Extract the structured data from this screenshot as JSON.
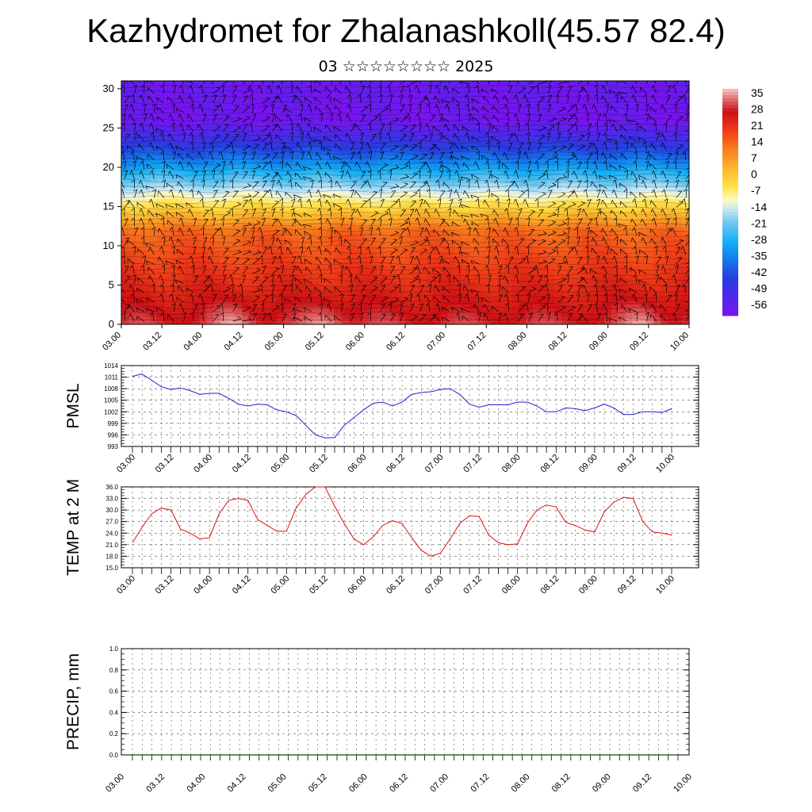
{
  "title": "Kazhydromet for Zhalanashkoll(45.57 82.4)",
  "subtitle": "03 ☆☆☆☆☆☆☆☆ 2025",
  "colors": {
    "pmsl_line": "#1f1fd6",
    "temp_line": "#e01010",
    "precip_line": "#2a6e2a"
  },
  "chart_data": [
    {
      "type": "heatmap",
      "name": "cross-section",
      "x_ticks": [
        "03.00",
        "03.12",
        "04.00",
        "04.12",
        "05.00",
        "05.12",
        "06.00",
        "06.12",
        "07.00",
        "07.12",
        "08.00",
        "08.12",
        "09.00",
        "09.12",
        "10.00"
      ],
      "y_ticks": [
        "0",
        "5",
        "10",
        "15",
        "20",
        "25",
        "30"
      ],
      "ylim": [
        0,
        31
      ],
      "colorbar_labels": [
        "35",
        "28",
        "21",
        "14",
        "7",
        "0",
        "-7",
        "-14",
        "-21",
        "-28",
        "-35",
        "-42",
        "-49",
        "-56"
      ],
      "colorbar_range": [
        -60,
        38
      ],
      "wind_vectors": true
    },
    {
      "type": "line",
      "name": "pmsl",
      "ylabel": "PMSL",
      "ylim": [
        993,
        1014
      ],
      "y_ticks": [
        "1014",
        "1011",
        "1008",
        "1005",
        "1002",
        "999",
        "996",
        "993"
      ],
      "x_ticks": [
        "03.00",
        "03.12",
        "04.00",
        "04.12",
        "05.00",
        "05.12",
        "06.00",
        "06.12",
        "07.00",
        "07.12",
        "08.00",
        "08.12",
        "09.00",
        "09.12",
        "10.00"
      ],
      "values": [
        1011.2,
        1011.8,
        1010.2,
        1008.5,
        1007.8,
        1008.2,
        1007.5,
        1006.5,
        1006.8,
        1006.8,
        1005.5,
        1004.0,
        1003.5,
        1004.0,
        1003.8,
        1002.5,
        1002.0,
        1001.0,
        998.5,
        996.0,
        995.2,
        995.3,
        998.5,
        1000.5,
        1002.5,
        1004.2,
        1004.5,
        1003.5,
        1004.5,
        1006.5,
        1007.0,
        1007.2,
        1007.8,
        1008.0,
        1006.5,
        1004.0,
        1003.2,
        1003.8,
        1003.8,
        1003.8,
        1004.5,
        1004.5,
        1003.5,
        1002.0,
        1002.0,
        1003.0,
        1002.8,
        1002.3,
        1003.0,
        1004.0,
        1003.0,
        1001.3,
        1001.3,
        1002.0,
        1002.0,
        1001.8,
        1002.8
      ]
    },
    {
      "type": "line",
      "name": "temp",
      "ylabel": "TEMP at 2 M",
      "ylim": [
        15,
        36
      ],
      "y_ticks": [
        "36.0",
        "33.0",
        "30.0",
        "27.0",
        "24.0",
        "21.0",
        "18.0",
        "15.0"
      ],
      "x_ticks": [
        "03.00",
        "03.12",
        "04.00",
        "04.12",
        "05.00",
        "05.12",
        "06.00",
        "06.12",
        "07.00",
        "07.12",
        "08.00",
        "08.12",
        "09.00",
        "09.12",
        "10.00"
      ],
      "values": [
        21.5,
        25.5,
        29.0,
        30.5,
        30.0,
        25.0,
        24.0,
        22.5,
        22.8,
        29.0,
        32.5,
        33.0,
        32.5,
        27.5,
        26.0,
        24.5,
        24.5,
        30.5,
        34.0,
        36.0,
        36.0,
        31.0,
        26.5,
        22.5,
        21.0,
        23.0,
        26.0,
        27.2,
        26.5,
        22.8,
        19.5,
        18.0,
        18.8,
        22.5,
        26.5,
        28.5,
        28.3,
        23.5,
        21.5,
        21.0,
        21.2,
        26.5,
        30.0,
        31.3,
        30.8,
        26.8,
        26.0,
        24.8,
        24.3,
        29.5,
        32.0,
        33.3,
        33.0,
        27.0,
        24.3,
        24.0,
        23.5
      ]
    },
    {
      "type": "line",
      "name": "precip",
      "ylabel": "PRECIP, mm",
      "ylim": [
        0,
        1
      ],
      "y_ticks": [
        "1.0",
        "0.8",
        "0.6",
        "0.4",
        "0.2",
        "0.0"
      ],
      "x_ticks": [
        "03.00",
        "03.12",
        "04.00",
        "04.12",
        "05.00",
        "05.12",
        "06.00",
        "06.12",
        "07.00",
        "07.12",
        "08.00",
        "08.12",
        "09.00",
        "09.12",
        "10.00"
      ],
      "values": [
        0,
        0,
        0,
        0,
        0,
        0,
        0,
        0,
        0,
        0,
        0,
        0,
        0,
        0,
        0,
        0,
        0,
        0,
        0,
        0,
        0,
        0,
        0,
        0,
        0,
        0,
        0,
        0,
        0,
        0,
        0,
        0,
        0,
        0,
        0,
        0,
        0,
        0,
        0,
        0,
        0,
        0,
        0,
        0,
        0,
        0,
        0,
        0,
        0,
        0,
        0,
        0,
        0,
        0,
        0,
        0,
        0
      ]
    }
  ]
}
